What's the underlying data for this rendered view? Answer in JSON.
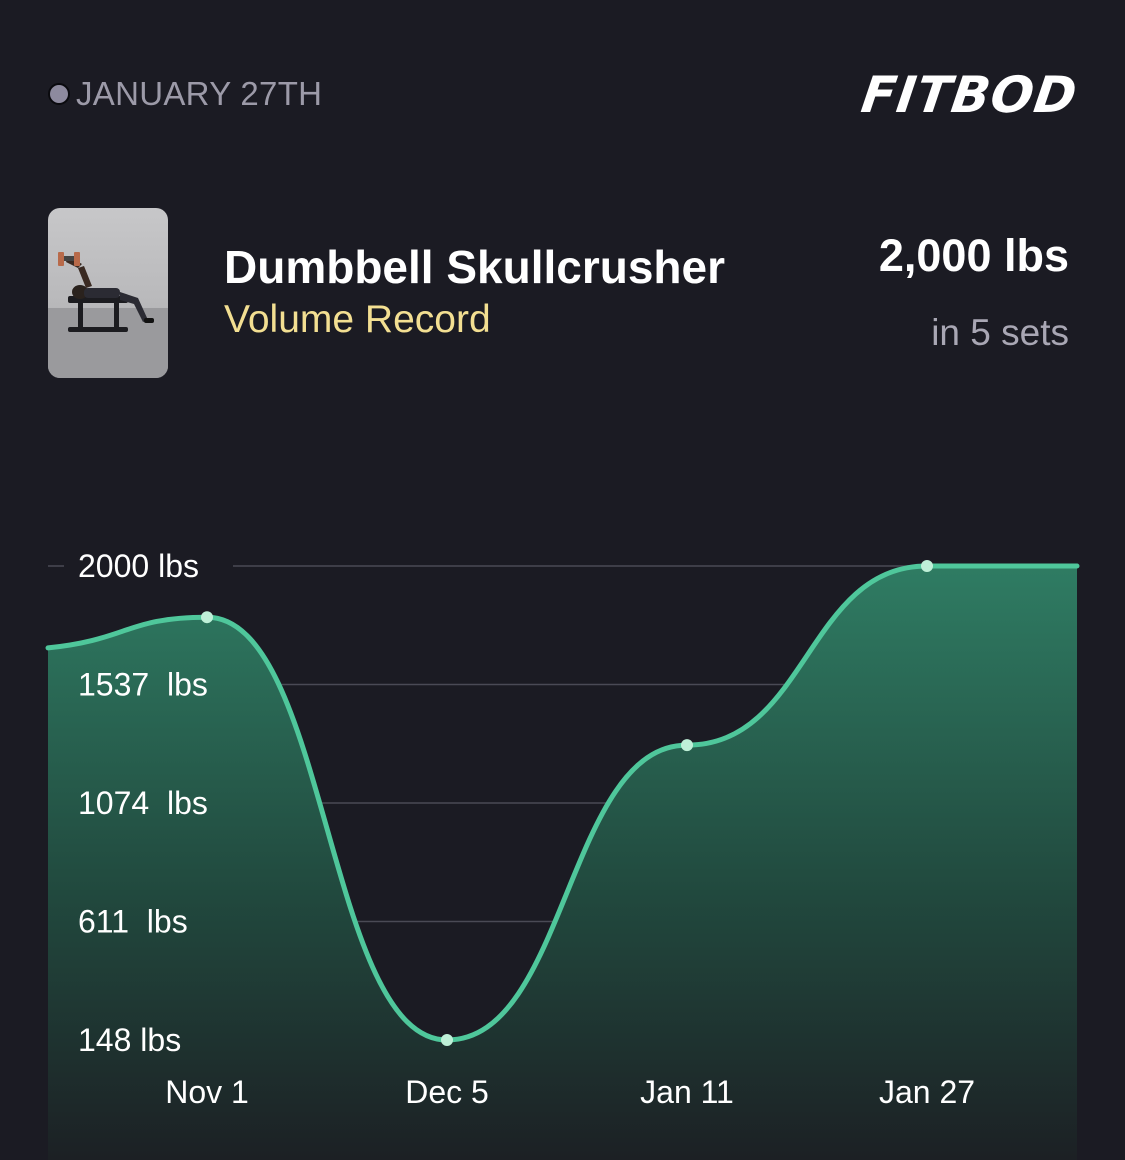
{
  "header": {
    "date": "JANUARY 27TH",
    "brand": "FITBOD"
  },
  "exercise": {
    "name": "Dumbbell Skullcrusher",
    "record_type": "Volume Record",
    "value": "2,000 lbs",
    "sets": "in 5 sets",
    "thumbnail_icon": "exercise-photo"
  },
  "colors": {
    "background": "#1b1b23",
    "accent": "#4fc79b",
    "record_text": "#f3df92"
  },
  "chart_data": {
    "type": "area",
    "x": [
      "Nov 1",
      "Dec 5",
      "Jan 11",
      "Jan 27"
    ],
    "values": [
      1800,
      148,
      1300,
      2000
    ],
    "ylim": [
      148,
      2000
    ],
    "y_ticks": [
      "2000 lbs",
      "1537  lbs",
      "1074  lbs",
      "611  lbs",
      "148 lbs"
    ],
    "y_tick_values": [
      2000,
      1537,
      1074,
      611,
      148
    ],
    "grid": true
  }
}
